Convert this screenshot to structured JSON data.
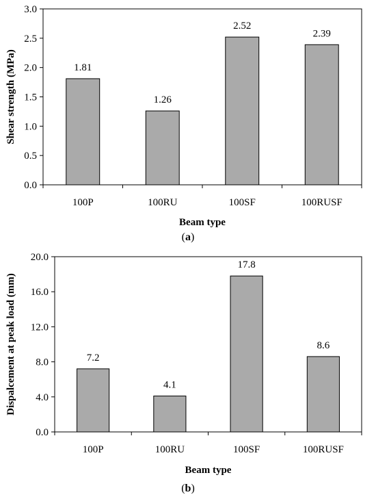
{
  "chart_data": [
    {
      "type": "bar",
      "categories": [
        "100P",
        "100RU",
        "100SF",
        "100RUSF"
      ],
      "values": [
        1.81,
        1.26,
        2.52,
        2.39
      ],
      "data_labels": [
        "1.81",
        "1.26",
        "2.52",
        "2.39"
      ],
      "xlabel": "Beam type",
      "ylabel": "Shear strength (MPa)",
      "ylim": [
        0,
        3.0
      ],
      "yticks": [
        "0.0",
        "0.5",
        "1.0",
        "1.5",
        "2.0",
        "2.5",
        "3.0"
      ],
      "grid": false,
      "bar_color": "#aaaaaa",
      "caption_open": "(",
      "caption_letter": "a",
      "caption_close": ")"
    },
    {
      "type": "bar",
      "categories": [
        "100P",
        "100RU",
        "100SF",
        "100RUSF"
      ],
      "values": [
        7.2,
        4.1,
        17.8,
        8.6
      ],
      "data_labels": [
        "7.2",
        "4.1",
        "17.8",
        "8.6"
      ],
      "xlabel": "Beam type",
      "ylabel": "Dispalcement at peak load (mm)",
      "ylim": [
        0,
        20.0
      ],
      "yticks": [
        "0.0",
        "4.0",
        "8.0",
        "12.0",
        "16.0",
        "20.0"
      ],
      "grid": false,
      "bar_color": "#aaaaaa",
      "caption_open": "(",
      "caption_letter": "b",
      "caption_close": ")"
    }
  ]
}
